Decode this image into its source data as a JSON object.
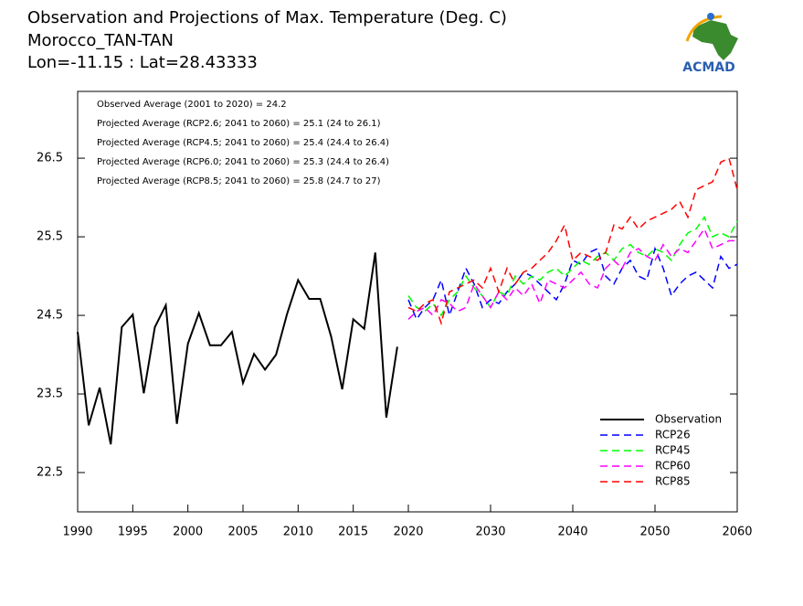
{
  "chart_data": {
    "type": "line",
    "title": "Observation and Projections of Max. Temperature (Deg. C)",
    "subtitle": [
      "Morocco_TAN-TAN",
      "Lon=-11.15 : Lat=28.43333"
    ],
    "logo": "ACMAD",
    "annotations": [
      "Observed Average (2001 to 2020) = 24.2",
      "Projected Average (RCP2.6; 2041 to 2060) = 25.1 (24 to 26.1)",
      "Projected Average (RCP4.5; 2041 to 2060) = 25.4 (24.4 to 26.4)",
      "Projected Average (RCP6.0; 2041 to 2060) = 25.3 (24.4 to 26.4)",
      "Projected Average (RCP8.5; 2041 to 2060) = 25.8 (24.7 to 27)"
    ],
    "xlim": [
      1990,
      2060
    ],
    "xticks": [
      1990,
      1995,
      2000,
      2005,
      2010,
      2015,
      2020,
      2030,
      2040,
      2050,
      2060
    ],
    "ylim": [
      22,
      27.35
    ],
    "yticks": [
      22.5,
      23.5,
      24.5,
      25.5,
      26.5
    ],
    "legend": "lower right",
    "series": [
      {
        "name": "Observation",
        "color": "#000000",
        "dashed": false,
        "x": [
          1990,
          1991,
          1992,
          1993,
          1994,
          1995,
          1996,
          1997,
          1998,
          1999,
          2000,
          2001,
          2002,
          2003,
          2004,
          2005,
          2006,
          2007,
          2008,
          2009,
          2010,
          2011,
          2012,
          2013,
          2014,
          2015,
          2016,
          2017,
          2018,
          2019
        ],
        "values": [
          24.29,
          23.1,
          23.58,
          22.86,
          24.35,
          24.51,
          23.51,
          24.35,
          24.63,
          23.12,
          24.14,
          24.53,
          24.12,
          24.12,
          24.29,
          23.64,
          24.01,
          23.81,
          24.0,
          24.52,
          24.95,
          24.71,
          24.71,
          24.23,
          23.56,
          24.45,
          24.33,
          25.3,
          23.2,
          24.1
        ]
      },
      {
        "name": "RCP26",
        "color": "#0000ff",
        "dashed": true,
        "x": [
          2020,
          2021,
          2022,
          2023,
          2024,
          2025,
          2026,
          2027,
          2028,
          2029,
          2030,
          2031,
          2032,
          2033,
          2034,
          2035,
          2036,
          2037,
          2038,
          2039,
          2040,
          2041,
          2042,
          2043,
          2044,
          2045,
          2046,
          2047,
          2048,
          2049,
          2050,
          2051,
          2052,
          2053,
          2054,
          2055,
          2056,
          2057,
          2058,
          2059,
          2060
        ],
        "values": [
          24.7,
          24.45,
          24.6,
          24.7,
          24.95,
          24.5,
          24.8,
          25.1,
          24.9,
          24.6,
          24.7,
          24.65,
          24.8,
          24.9,
          25.05,
          25.0,
          24.9,
          24.8,
          24.7,
          24.9,
          25.2,
          25.15,
          25.3,
          25.35,
          25.0,
          24.9,
          25.1,
          25.2,
          25.0,
          24.95,
          25.35,
          25.1,
          24.75,
          24.9,
          25.0,
          25.05,
          24.95,
          24.85,
          25.25,
          25.1,
          25.15
        ]
      },
      {
        "name": "RCP45",
        "color": "#00ff00",
        "dashed": true,
        "x": [
          2020,
          2021,
          2022,
          2023,
          2024,
          2025,
          2026,
          2027,
          2028,
          2029,
          2030,
          2031,
          2032,
          2033,
          2034,
          2035,
          2036,
          2037,
          2038,
          2039,
          2040,
          2041,
          2042,
          2043,
          2044,
          2045,
          2046,
          2047,
          2048,
          2049,
          2050,
          2051,
          2052,
          2053,
          2054,
          2055,
          2056,
          2057,
          2058,
          2059,
          2060
        ],
        "values": [
          24.75,
          24.6,
          24.55,
          24.65,
          24.5,
          24.7,
          24.8,
          25.0,
          24.85,
          24.75,
          24.6,
          24.8,
          24.75,
          25.0,
          24.9,
          25.0,
          24.95,
          25.05,
          25.1,
          25.0,
          25.1,
          25.2,
          25.15,
          25.25,
          25.3,
          25.2,
          25.35,
          25.4,
          25.3,
          25.25,
          25.35,
          25.3,
          25.2,
          25.4,
          25.55,
          25.6,
          25.75,
          25.5,
          25.55,
          25.5,
          25.7
        ]
      },
      {
        "name": "RCP60",
        "color": "#ff00ff",
        "dashed": true,
        "x": [
          2020,
          2021,
          2022,
          2023,
          2024,
          2025,
          2026,
          2027,
          2028,
          2029,
          2030,
          2031,
          2032,
          2033,
          2034,
          2035,
          2036,
          2037,
          2038,
          2039,
          2040,
          2041,
          2042,
          2043,
          2044,
          2045,
          2046,
          2047,
          2048,
          2049,
          2050,
          2051,
          2052,
          2053,
          2054,
          2055,
          2056,
          2057,
          2058,
          2059,
          2060
        ],
        "values": [
          24.45,
          24.55,
          24.6,
          24.5,
          24.7,
          24.65,
          24.55,
          24.6,
          24.9,
          24.75,
          24.6,
          24.8,
          24.7,
          24.85,
          24.75,
          24.9,
          24.65,
          24.95,
          24.9,
          24.85,
          24.95,
          25.05,
          24.9,
          24.85,
          25.1,
          25.2,
          25.1,
          25.3,
          25.35,
          25.25,
          25.2,
          25.4,
          25.25,
          25.35,
          25.3,
          25.45,
          25.6,
          25.35,
          25.4,
          25.45,
          25.45
        ]
      },
      {
        "name": "RCP85",
        "color": "#ff0000",
        "dashed": true,
        "x": [
          2020,
          2021,
          2022,
          2023,
          2024,
          2025,
          2026,
          2027,
          2028,
          2029,
          2030,
          2031,
          2032,
          2033,
          2034,
          2035,
          2036,
          2037,
          2038,
          2039,
          2040,
          2041,
          2042,
          2043,
          2044,
          2045,
          2046,
          2047,
          2048,
          2049,
          2050,
          2051,
          2052,
          2053,
          2054,
          2055,
          2056,
          2057,
          2058,
          2059,
          2060
        ],
        "values": [
          24.6,
          24.55,
          24.65,
          24.7,
          24.4,
          24.8,
          24.85,
          24.9,
          24.95,
          24.85,
          25.1,
          24.8,
          25.1,
          24.9,
          25.05,
          25.1,
          25.2,
          25.3,
          25.45,
          25.65,
          25.2,
          25.3,
          25.25,
          25.2,
          25.3,
          25.65,
          25.6,
          25.75,
          25.6,
          25.7,
          25.75,
          25.8,
          25.85,
          25.95,
          25.75,
          26.1,
          26.15,
          26.2,
          26.45,
          26.5,
          26.1
        ]
      }
    ]
  }
}
